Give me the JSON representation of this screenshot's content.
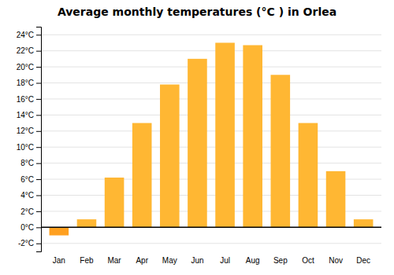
{
  "chart_data": {
    "type": "bar",
    "title": "Average monthly temperatures (°C ) in Orlea",
    "categories": [
      "Jan",
      "Feb",
      "Mar",
      "Apr",
      "May",
      "Jun",
      "Jul",
      "Aug",
      "Sep",
      "Oct",
      "Nov",
      "Dec"
    ],
    "values": [
      -1.0,
      1.0,
      6.2,
      13.0,
      17.8,
      21.0,
      23.0,
      22.7,
      19.0,
      13.0,
      7.0,
      1.0
    ],
    "colors": [
      "#FFA020",
      "#FFB733",
      "#FFB733",
      "#FFB733",
      "#FFB733",
      "#FFB733",
      "#FFB733",
      "#FFB733",
      "#FFB733",
      "#FFB733",
      "#FFB733",
      "#FFB733"
    ],
    "ylim": [
      -3,
      25
    ],
    "yticks": [
      {
        "value": -2,
        "label": "-2°C"
      },
      {
        "value": 0,
        "label": "0°C"
      },
      {
        "value": 2,
        "label": "2°C"
      },
      {
        "value": 4,
        "label": "4°C"
      },
      {
        "value": 6,
        "label": "6°C"
      },
      {
        "value": 8,
        "label": "8°C"
      },
      {
        "value": 10,
        "label": "10°C"
      },
      {
        "value": 12,
        "label": "12°C"
      },
      {
        "value": 14,
        "label": "14°C"
      },
      {
        "value": 16,
        "label": "16°C"
      },
      {
        "value": 18,
        "label": "18°C"
      },
      {
        "value": 20,
        "label": "20°C"
      },
      {
        "value": 22,
        "label": "22°C"
      },
      {
        "value": 24,
        "label": "24°C"
      }
    ],
    "grid": true
  }
}
